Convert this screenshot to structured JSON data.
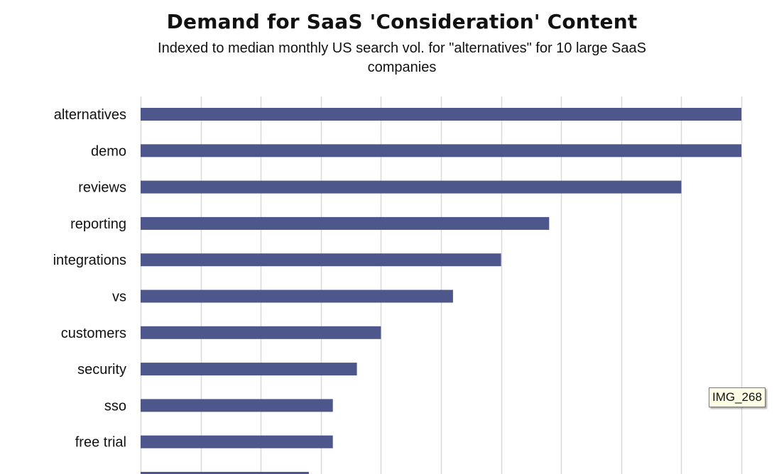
{
  "chart_data": {
    "type": "bar",
    "orientation": "horizontal",
    "title": "Demand for SaaS 'Consideration' Content",
    "subtitle": "Indexed to median monthly US search vol. for \"alternatives\" for 10 large SaaS companies",
    "categories": [
      "alternatives",
      "demo",
      "reviews",
      "reporting",
      "integrations",
      "vs",
      "customers",
      "security",
      "sso",
      "free trial",
      "…"
    ],
    "values": [
      100,
      100,
      90,
      68,
      60,
      52,
      40,
      36,
      32,
      32,
      28
    ],
    "xlim": [
      0,
      100
    ],
    "grid": true,
    "bar_color": "#4d578c",
    "gridline_color": "#d9d9d9"
  },
  "image_tag": "IMG_268"
}
